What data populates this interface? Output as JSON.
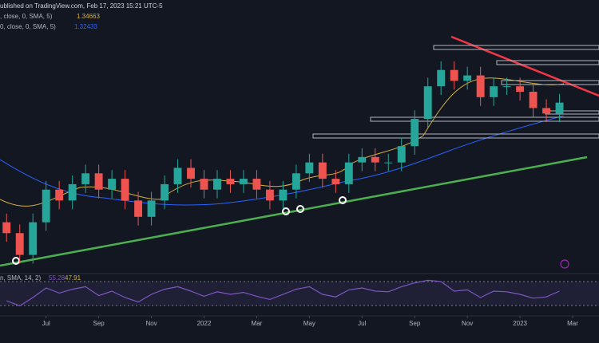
{
  "chart_data": {
    "type": "candlestick",
    "header": {
      "published": "ublished on TradingView.com, Feb 17, 2023 15:21 UTC-5",
      "ma1_label": ", close, 0, SMA, 5)",
      "ma1_value": "1.34663",
      "ma2_label": "0, close, 0, SMA, 5)",
      "ma2_value": "1.32433",
      "rsi_label": "n, SMA, 14, 2)",
      "rsi_value": "55.28",
      "rsi_ma_value": "47.91"
    },
    "up_color": "#26a69a",
    "down_color": "#ef5350",
    "categories": [
      null,
      null,
      null,
      null,
      null,
      null,
      null,
      null,
      null,
      null,
      null,
      null,
      null,
      null,
      null,
      null,
      null,
      null,
      null,
      null,
      null,
      null,
      null,
      null,
      null,
      null,
      null,
      null,
      null,
      null,
      null,
      null,
      null,
      null,
      null,
      null,
      null,
      null,
      null,
      null,
      null,
      null,
      null
    ],
    "open": [
      1.235,
      1.225,
      1.205,
      1.235,
      1.265,
      1.255,
      1.27,
      1.28,
      1.265,
      1.275,
      1.255,
      1.24,
      1.255,
      1.27,
      1.285,
      1.275,
      1.265,
      1.275,
      1.27,
      1.275,
      1.265,
      1.255,
      1.265,
      1.28,
      1.29,
      1.275,
      1.27,
      1.29,
      1.295,
      1.29,
      1.29,
      1.305,
      1.33,
      1.36,
      1.375,
      1.365,
      1.37,
      1.35,
      1.36,
      1.36,
      1.355,
      1.34,
      1.335
    ],
    "high": [
      1.243,
      1.233,
      1.243,
      1.273,
      1.273,
      1.278,
      1.288,
      1.288,
      1.283,
      1.283,
      1.263,
      1.263,
      1.278,
      1.293,
      1.293,
      1.283,
      1.283,
      1.283,
      1.283,
      1.283,
      1.273,
      1.273,
      1.288,
      1.298,
      1.298,
      1.283,
      1.298,
      1.303,
      1.303,
      1.298,
      1.313,
      1.338,
      1.368,
      1.383,
      1.383,
      1.378,
      1.378,
      1.368,
      1.368,
      1.368,
      1.363,
      1.348,
      1.353
    ],
    "low": [
      1.217,
      1.197,
      1.197,
      1.227,
      1.247,
      1.247,
      1.262,
      1.257,
      1.257,
      1.247,
      1.232,
      1.232,
      1.247,
      1.262,
      1.267,
      1.257,
      1.257,
      1.262,
      1.262,
      1.257,
      1.247,
      1.247,
      1.257,
      1.272,
      1.267,
      1.262,
      1.262,
      1.282,
      1.282,
      1.282,
      1.282,
      1.297,
      1.322,
      1.352,
      1.357,
      1.357,
      1.342,
      1.342,
      1.352,
      1.347,
      1.332,
      1.327,
      1.327
    ],
    "close": [
      1.225,
      1.205,
      1.235,
      1.265,
      1.255,
      1.27,
      1.28,
      1.265,
      1.275,
      1.255,
      1.24,
      1.255,
      1.27,
      1.285,
      1.275,
      1.265,
      1.275,
      1.27,
      1.275,
      1.265,
      1.255,
      1.265,
      1.28,
      1.29,
      1.275,
      1.27,
      1.29,
      1.295,
      1.29,
      1.29,
      1.305,
      1.33,
      1.36,
      1.375,
      1.365,
      1.37,
      1.35,
      1.36,
      1.36,
      1.355,
      1.34,
      1.335,
      1.345
    ],
    "ylim": [
      1.19,
      1.41
    ],
    "xlim": [
      -0.5,
      45
    ],
    "xticks": [
      {
        "value": 3,
        "label": "Jul"
      },
      {
        "value": 7,
        "label": "Sep"
      },
      {
        "value": 11,
        "label": "Nov"
      },
      {
        "value": 15,
        "label": "2022"
      },
      {
        "value": 19,
        "label": "Mar"
      },
      {
        "value": 23,
        "label": "May"
      },
      {
        "value": 27,
        "label": "Jul"
      },
      {
        "value": 31,
        "label": "Sep"
      },
      {
        "value": 35,
        "label": "Nov"
      },
      {
        "value": 39,
        "label": "2023"
      },
      {
        "value": 43,
        "label": "Mar"
      }
    ],
    "rsi": {
      "color": "#7e57c2",
      "values": [
        40,
        32,
        45,
        60,
        52,
        58,
        62,
        48,
        55,
        45,
        38,
        50,
        58,
        62,
        55,
        47,
        54,
        50,
        53,
        47,
        42,
        50,
        58,
        62,
        50,
        46,
        57,
        60,
        55,
        54,
        62,
        68,
        72,
        70,
        55,
        57,
        45,
        55,
        54,
        50,
        44,
        46,
        55
      ],
      "ylim": [
        20,
        80
      ]
    }
  }
}
